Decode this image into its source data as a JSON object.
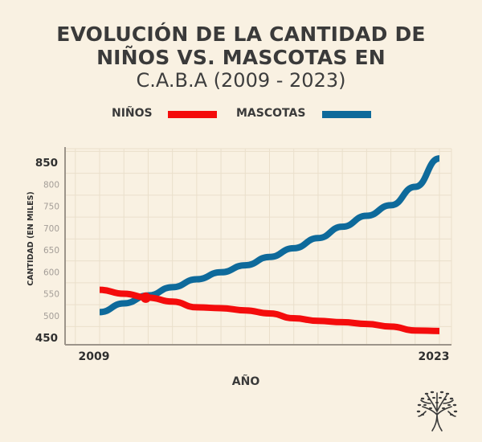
{
  "title": {
    "line1": "EVOLUCIÓN DE LA CANTIDAD DE",
    "line2": "NIÑOS VS. MASCOTAS EN",
    "line3": "C.A.B.A (2009 - 2023)"
  },
  "colors": {
    "background": "#f9f1e2",
    "ninos": "#f40c0c",
    "mascotas": "#0e6a9b",
    "grid": "#eadfcb",
    "axis": "#9c948a",
    "text": "#3a3a3a",
    "tick_minor": "#a39d97"
  },
  "logo": {
    "icon": "tree-icon"
  },
  "chart_data": {
    "type": "line",
    "title": "EVOLUCIÓN DE LA CANTIDAD DE NIÑOS VS. MASCOTAS EN C.A.B.A (2009 - 2023)",
    "xlabel": "AÑO",
    "ylabel": "CANTIDAD (EN MILES)",
    "x": [
      2009,
      2010,
      2011,
      2012,
      2013,
      2014,
      2015,
      2016,
      2017,
      2018,
      2019,
      2020,
      2021,
      2022,
      2023
    ],
    "x_tick_labels": [
      "2009",
      "2023"
    ],
    "xlim": [
      2009,
      2023
    ],
    "ylim": [
      450,
      850
    ],
    "y_ticks": [
      450,
      500,
      550,
      600,
      650,
      700,
      750,
      800,
      850
    ],
    "y_tick_labels_emphasized": [
      450,
      850
    ],
    "grid": true,
    "legend": {
      "position": "top-center",
      "entries": [
        "NIÑOS",
        "MASCOTAS"
      ]
    },
    "series": [
      {
        "name": "NIÑOS",
        "values": [
          559,
          550,
          541,
          532,
          519,
          517,
          512,
          505,
          494,
          488,
          485,
          481,
          475,
          466,
          465
        ]
      },
      {
        "name": "MASCOTAS",
        "values": [
          508,
          528,
          546,
          565,
          583,
          599,
          615,
          634,
          654,
          677,
          703,
          728,
          752,
          794,
          859
        ]
      }
    ],
    "annotations": [
      {
        "type": "marker",
        "series": "NIÑOS",
        "x": 2011,
        "y": 541,
        "label": "intersection"
      }
    ]
  }
}
